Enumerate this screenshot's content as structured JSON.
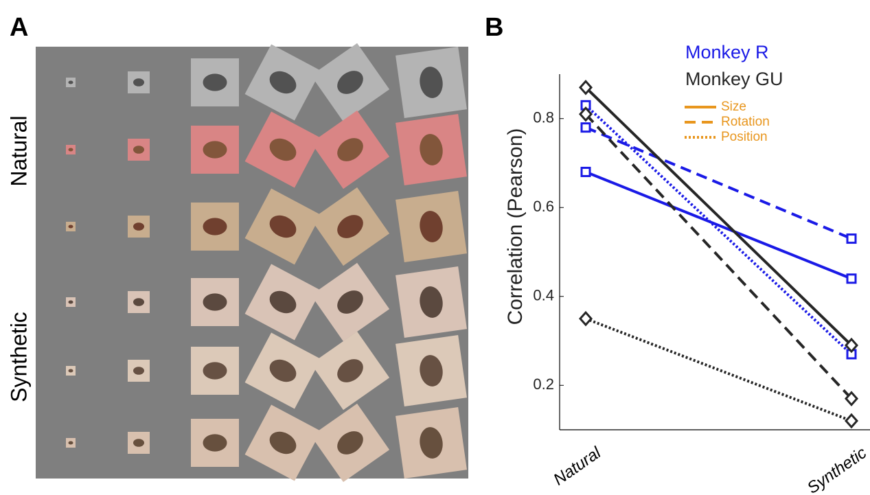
{
  "figure": {
    "panel_a": {
      "label": "A",
      "row_labels": [
        "Natural",
        "Synthetic"
      ]
    }
  },
  "chart_data": {
    "type": "line",
    "panel_label": "B",
    "categories": [
      "Natural",
      "Synthetic"
    ],
    "y_label": "Correlation (Pearson)",
    "ylim": [
      0.1,
      0.9
    ],
    "yticks": [
      0.2,
      0.4,
      0.6,
      0.8
    ],
    "grid": false,
    "style_legend_color": "#e8961e",
    "groups": [
      {
        "name": "Monkey R",
        "color": "#1a1ae6",
        "marker": "square",
        "series": [
          {
            "name": "Size",
            "dash": "solid",
            "values": [
              0.68,
              0.44
            ]
          },
          {
            "name": "Rotation",
            "dash": "dashed",
            "values": [
              0.78,
              0.53
            ]
          },
          {
            "name": "Position",
            "dash": "dotted",
            "values": [
              0.83,
              0.27
            ]
          }
        ]
      },
      {
        "name": "Monkey GU",
        "color": "#262626",
        "marker": "diamond",
        "series": [
          {
            "name": "Size",
            "dash": "solid",
            "values": [
              0.87,
              0.29
            ]
          },
          {
            "name": "Rotation",
            "dash": "dashed",
            "values": [
              0.81,
              0.17
            ]
          },
          {
            "name": "Position",
            "dash": "dotted",
            "values": [
              0.35,
              0.12
            ]
          }
        ]
      }
    ]
  }
}
